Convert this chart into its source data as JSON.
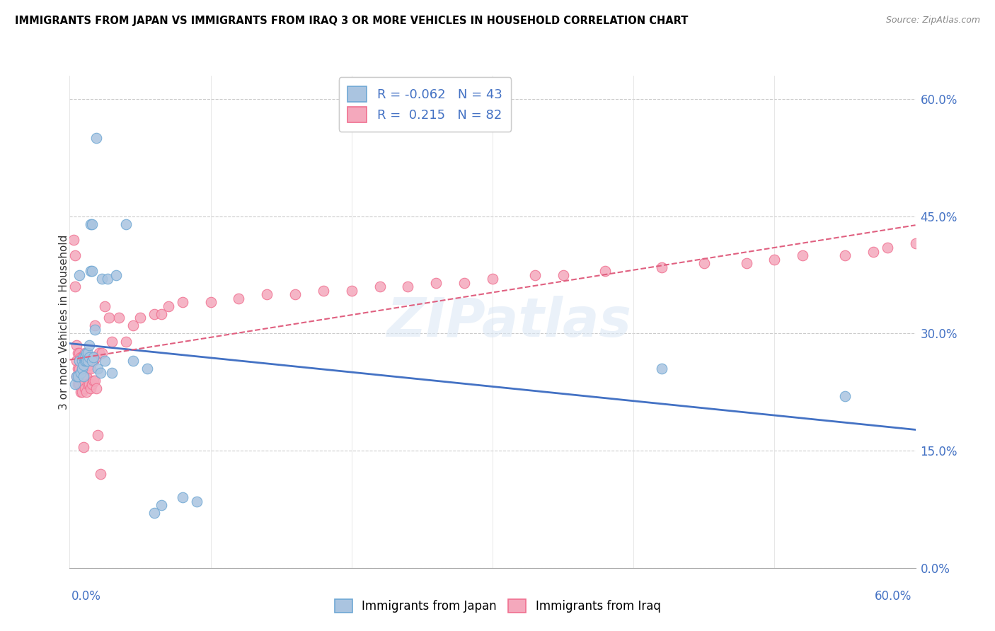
{
  "title": "IMMIGRANTS FROM JAPAN VS IMMIGRANTS FROM IRAQ 3 OR MORE VEHICLES IN HOUSEHOLD CORRELATION CHART",
  "source": "Source: ZipAtlas.com",
  "ylabel": "3 or more Vehicles in Household",
  "xlim": [
    0.0,
    0.6
  ],
  "ylim": [
    0.0,
    0.63
  ],
  "yticks": [
    0.0,
    0.15,
    0.3,
    0.45,
    0.6
  ],
  "ytick_labels": [
    "0.0%",
    "15.0%",
    "30.0%",
    "45.0%",
    "60.0%"
  ],
  "legend_japan_R": "-0.062",
  "legend_japan_N": "43",
  "legend_iraq_R": "0.215",
  "legend_iraq_N": "82",
  "color_japan_fill": "#aac4e0",
  "color_iraq_fill": "#f4a8bc",
  "color_japan_edge": "#6fa8d4",
  "color_iraq_edge": "#f07090",
  "trendline_japan_color": "#4472c4",
  "trendline_iraq_color": "#e06080",
  "watermark": "ZIPatlas",
  "japan_x": [
    0.004,
    0.005,
    0.006,
    0.007,
    0.007,
    0.008,
    0.009,
    0.009,
    0.01,
    0.01,
    0.01,
    0.011,
    0.011,
    0.012,
    0.012,
    0.013,
    0.013,
    0.014,
    0.014,
    0.015,
    0.015,
    0.016,
    0.016,
    0.016,
    0.017,
    0.018,
    0.019,
    0.02,
    0.022,
    0.023,
    0.025,
    0.027,
    0.03,
    0.033,
    0.04,
    0.045,
    0.055,
    0.06,
    0.065,
    0.08,
    0.09,
    0.42,
    0.55
  ],
  "japan_y": [
    0.235,
    0.245,
    0.245,
    0.265,
    0.375,
    0.25,
    0.255,
    0.265,
    0.245,
    0.26,
    0.27,
    0.265,
    0.27,
    0.265,
    0.275,
    0.265,
    0.275,
    0.27,
    0.285,
    0.38,
    0.44,
    0.265,
    0.38,
    0.44,
    0.27,
    0.305,
    0.55,
    0.255,
    0.25,
    0.37,
    0.265,
    0.37,
    0.25,
    0.375,
    0.44,
    0.265,
    0.255,
    0.07,
    0.08,
    0.09,
    0.085,
    0.255,
    0.22
  ],
  "iraq_x": [
    0.003,
    0.004,
    0.004,
    0.005,
    0.005,
    0.005,
    0.006,
    0.006,
    0.006,
    0.007,
    0.007,
    0.007,
    0.008,
    0.008,
    0.008,
    0.009,
    0.009,
    0.009,
    0.01,
    0.01,
    0.01,
    0.01,
    0.011,
    0.011,
    0.011,
    0.012,
    0.012,
    0.012,
    0.013,
    0.013,
    0.013,
    0.014,
    0.014,
    0.015,
    0.015,
    0.015,
    0.016,
    0.016,
    0.017,
    0.017,
    0.018,
    0.018,
    0.019,
    0.019,
    0.02,
    0.021,
    0.022,
    0.023,
    0.025,
    0.028,
    0.03,
    0.035,
    0.04,
    0.045,
    0.05,
    0.06,
    0.065,
    0.07,
    0.08,
    0.1,
    0.12,
    0.14,
    0.16,
    0.18,
    0.2,
    0.22,
    0.24,
    0.26,
    0.28,
    0.3,
    0.33,
    0.35,
    0.38,
    0.42,
    0.45,
    0.48,
    0.5,
    0.52,
    0.55,
    0.57,
    0.58,
    0.6
  ],
  "iraq_y": [
    0.42,
    0.36,
    0.4,
    0.245,
    0.265,
    0.285,
    0.235,
    0.255,
    0.275,
    0.235,
    0.255,
    0.275,
    0.225,
    0.245,
    0.27,
    0.225,
    0.245,
    0.27,
    0.155,
    0.235,
    0.25,
    0.265,
    0.23,
    0.25,
    0.275,
    0.225,
    0.245,
    0.27,
    0.235,
    0.255,
    0.27,
    0.235,
    0.26,
    0.23,
    0.255,
    0.27,
    0.235,
    0.265,
    0.24,
    0.265,
    0.24,
    0.31,
    0.23,
    0.27,
    0.17,
    0.275,
    0.12,
    0.275,
    0.335,
    0.32,
    0.29,
    0.32,
    0.29,
    0.31,
    0.32,
    0.325,
    0.325,
    0.335,
    0.34,
    0.34,
    0.345,
    0.35,
    0.35,
    0.355,
    0.355,
    0.36,
    0.36,
    0.365,
    0.365,
    0.37,
    0.375,
    0.375,
    0.38,
    0.385,
    0.39,
    0.39,
    0.395,
    0.4,
    0.4,
    0.405,
    0.41,
    0.415
  ]
}
